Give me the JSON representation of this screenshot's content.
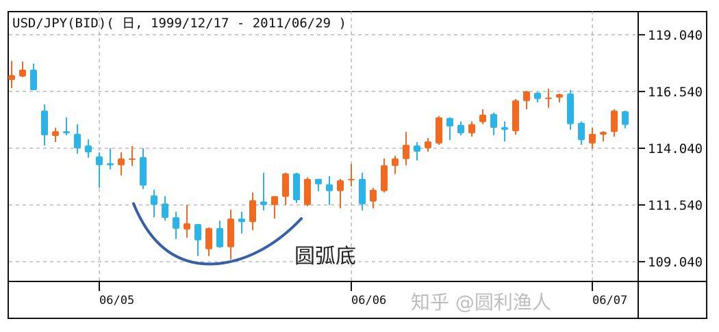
{
  "chart_data": {
    "type": "candlestick",
    "title": "USD/JPY(BID)( 日, 1999/12/17 - 2011/06/29 )",
    "ylim": [
      108.17,
      120.09
    ],
    "y_ticks": [
      "119.040",
      "116.540",
      "114.040",
      "111.540",
      "109.040"
    ],
    "y_tick_values": [
      119.04,
      116.54,
      114.04,
      111.54,
      109.04
    ],
    "x_ticks": [
      {
        "label": "06/05",
        "index": 8
      },
      {
        "label": "06/06",
        "index": 31
      },
      {
        "label": "06/07",
        "index": 53
      }
    ],
    "grid": true,
    "colors": {
      "up": "#f06a22",
      "down": "#2db4e6",
      "arc": "#3560a8"
    },
    "candles_ohlc": [
      [
        117.05,
        117.89,
        116.69,
        117.26
      ],
      [
        117.2,
        117.86,
        117.17,
        117.5
      ],
      [
        117.5,
        117.77,
        116.6,
        116.6
      ],
      [
        115.7,
        115.97,
        114.16,
        114.61
      ],
      [
        114.58,
        114.94,
        114.31,
        114.79
      ],
      [
        114.79,
        115.4,
        114.61,
        114.7
      ],
      [
        114.67,
        115.1,
        113.8,
        114.04
      ],
      [
        114.16,
        114.43,
        113.62,
        113.86
      ],
      [
        113.68,
        113.86,
        112.3,
        113.29
      ],
      [
        113.38,
        114.04,
        113.11,
        113.29
      ],
      [
        113.29,
        113.86,
        112.84,
        113.59
      ],
      [
        113.56,
        114.13,
        113.26,
        113.59
      ],
      [
        113.65,
        114.04,
        112.24,
        112.39
      ],
      [
        111.96,
        112.21,
        111.0,
        111.54
      ],
      [
        111.6,
        111.93,
        110.85,
        110.97
      ],
      [
        111.0,
        111.24,
        110.04,
        110.49
      ],
      [
        110.46,
        111.54,
        110.1,
        110.73
      ],
      [
        110.7,
        110.7,
        109.29,
        109.98
      ],
      [
        109.59,
        110.55,
        109.29,
        110.52
      ],
      [
        110.52,
        110.85,
        109.65,
        109.68
      ],
      [
        109.68,
        111.33,
        109.14,
        110.94
      ],
      [
        110.94,
        111.24,
        110.28,
        110.79
      ],
      [
        110.79,
        112.09,
        110.43,
        111.75
      ],
      [
        111.69,
        112.96,
        111.3,
        111.54
      ],
      [
        111.54,
        111.93,
        110.94,
        111.93
      ],
      [
        111.9,
        112.96,
        111.54,
        112.93
      ],
      [
        112.93,
        112.96,
        111.63,
        111.75
      ],
      [
        111.54,
        112.75,
        111.48,
        112.69
      ],
      [
        112.69,
        112.69,
        112.15,
        112.45
      ],
      [
        112.45,
        112.81,
        111.54,
        112.15
      ],
      [
        112.15,
        112.69,
        111.39,
        112.63
      ],
      [
        112.63,
        113.35,
        112.36,
        112.69
      ],
      [
        112.69,
        112.96,
        111.3,
        111.57
      ],
      [
        111.69,
        112.3,
        111.39,
        112.21
      ],
      [
        112.15,
        113.59,
        112.09,
        113.29
      ],
      [
        113.26,
        113.71,
        112.9,
        113.59
      ],
      [
        113.56,
        114.76,
        113.29,
        114.19
      ],
      [
        114.16,
        114.31,
        113.5,
        113.89
      ],
      [
        114.04,
        114.49,
        113.89,
        114.34
      ],
      [
        114.25,
        115.46,
        114.19,
        115.4
      ],
      [
        115.37,
        115.4,
        114.4,
        115.0
      ],
      [
        115.07,
        115.22,
        114.61,
        114.7
      ],
      [
        114.7,
        115.22,
        114.55,
        115.1
      ],
      [
        115.19,
        115.76,
        115.1,
        115.52
      ],
      [
        115.55,
        115.61,
        114.61,
        114.94
      ],
      [
        114.97,
        115.22,
        114.34,
        114.85
      ],
      [
        114.79,
        116.21,
        114.64,
        116.15
      ],
      [
        116.12,
        116.57,
        115.76,
        116.54
      ],
      [
        116.48,
        116.51,
        116.06,
        116.21
      ],
      [
        116.24,
        116.66,
        115.82,
        116.27
      ],
      [
        116.27,
        116.45,
        116.06,
        116.42
      ],
      [
        116.45,
        116.6,
        114.85,
        115.1
      ],
      [
        115.16,
        115.22,
        114.19,
        114.4
      ],
      [
        114.25,
        114.94,
        114.04,
        114.67
      ],
      [
        114.64,
        114.79,
        114.34,
        114.76
      ],
      [
        114.76,
        115.76,
        114.55,
        115.7
      ],
      [
        115.67,
        115.7,
        114.91,
        115.07
      ]
    ],
    "annotation": "圆弧底",
    "watermark": "知乎 @圆利渔人"
  }
}
